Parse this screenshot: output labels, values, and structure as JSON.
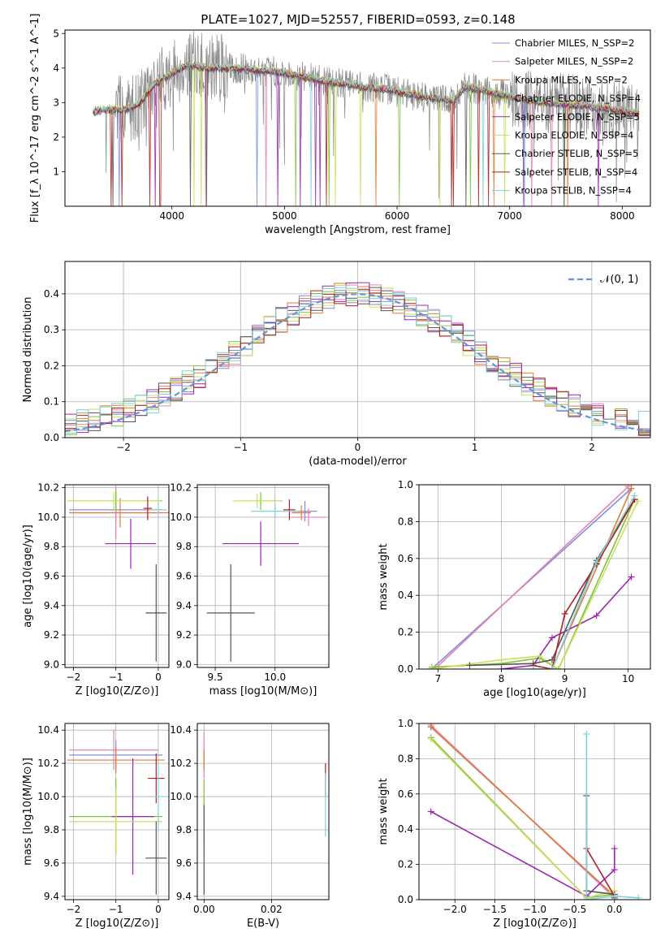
{
  "figure": {
    "title": "PLATE=1027, MJD=52557, FIBERID=0593, z=0.148"
  },
  "colors": {
    "chabrier_miles": "#7b8fe0",
    "salpeter_miles": "#e583b3",
    "kroupa_miles": "#e07b3a",
    "chabrier_elodie": "#7fbf3f",
    "salpeter_elodie": "#9b27b0",
    "kroupa_elodie": "#c8e05a",
    "chabrier_stelib": "#555555",
    "salpeter_stelib": "#b01f1f",
    "kroupa_stelib": "#7fd0d8",
    "normal_curve": "#6495dc",
    "grid": "#b0b0b0",
    "data_gray": "#888888"
  },
  "chart_data": [
    {
      "id": "spectrum",
      "type": "line",
      "title": "PLATE=1027, MJD=52557, FIBERID=0593, z=0.148",
      "xlabel": "wavelength [Angstrom, rest frame]",
      "ylabel": "Flux [f_λ 10^-17 erg cm^-2 s^-1 A^-1]",
      "xlim": [
        3050,
        8250
      ],
      "ylim": [
        0,
        5.1
      ],
      "xticks": [
        4000,
        5000,
        6000,
        7000,
        8000
      ],
      "yticks": [
        1,
        2,
        3,
        4,
        5
      ],
      "grid": false,
      "legend_position": "right",
      "continuum": {
        "x": [
          3300,
          3450,
          3600,
          3700,
          3850,
          3950,
          4050,
          4150,
          4300,
          4500,
          4700,
          4900,
          5100,
          5300,
          5500,
          5700,
          5900,
          6100,
          6300,
          6500,
          6600,
          6700,
          6900,
          7100,
          7300,
          7500,
          7700,
          7900,
          8100
        ],
        "y": [
          2.75,
          2.8,
          2.8,
          2.95,
          3.55,
          3.75,
          3.95,
          4.1,
          4.0,
          4.0,
          3.95,
          3.9,
          3.8,
          3.65,
          3.55,
          3.45,
          3.4,
          3.25,
          3.15,
          3.05,
          3.45,
          3.4,
          3.25,
          3.1,
          3.0,
          2.95,
          2.9,
          2.8,
          2.7
        ]
      },
      "series": [
        {
          "name": "Chabrier MILES, N_SSP=2",
          "color_key": "chabrier_miles"
        },
        {
          "name": "Salpeter MILES, N_SSP=2",
          "color_key": "salpeter_miles"
        },
        {
          "name": "Kroupa MILES, N_SSP=2",
          "color_key": "kroupa_miles"
        },
        {
          "name": "Chabrier ELODIE, N_SSP=4",
          "color_key": "chabrier_elodie"
        },
        {
          "name": "Salpeter ELODIE, N_SSP=5",
          "color_key": "salpeter_elodie"
        },
        {
          "name": "Kroupa ELODIE, N_SSP=4",
          "color_key": "kroupa_elodie"
        },
        {
          "name": "Chabrier STELIB, N_SSP=5",
          "color_key": "chabrier_stelib"
        },
        {
          "name": "Salpeter STELIB, N_SSP=4",
          "color_key": "salpeter_stelib"
        },
        {
          "name": "Kroupa STELIB, N_SSP=4",
          "color_key": "kroupa_stelib"
        }
      ]
    },
    {
      "id": "residuals",
      "type": "line",
      "xlabel": "(data-model)/error",
      "ylabel": "Normed distribution",
      "xlim": [
        -2.5,
        2.5
      ],
      "ylim": [
        0,
        0.49
      ],
      "xticks": [
        -2,
        -1,
        0,
        1,
        2
      ],
      "yticks": [
        0.0,
        0.1,
        0.2,
        0.3,
        0.4
      ],
      "grid": true,
      "legend_position": "top-right",
      "legend": "𝒩(0, 1)",
      "normal_curve": {
        "mu": 0,
        "sigma": 1
      },
      "bin_width": 0.1
    },
    {
      "id": "age_vs_Z",
      "type": "scatter",
      "xlabel": "Z [log10(Z/Z⊙)]",
      "ylabel": "age [log10(age/yr)]",
      "xlim": [
        -2.2,
        0.25
      ],
      "ylim": [
        8.98,
        10.22
      ],
      "xticks": [
        -2,
        -1,
        0
      ],
      "yticks": [
        9.0,
        9.2,
        9.4,
        9.6,
        9.8,
        10.0,
        10.2
      ],
      "grid": true,
      "points": [
        {
          "x": -1.0,
          "y": 10.05,
          "xerr": 1.1,
          "yerr": 0.08,
          "color_key": "chabrier_miles"
        },
        {
          "x": -1.0,
          "y": 10.03,
          "xerr": 1.1,
          "yerr": 0.18,
          "color_key": "salpeter_miles"
        },
        {
          "x": -0.9,
          "y": 10.03,
          "xerr": 1.2,
          "yerr": 0.1,
          "color_key": "kroupa_miles"
        },
        {
          "x": -1.0,
          "y": 10.11,
          "xerr": 1.1,
          "yerr": 0.07,
          "color_key": "chabrier_elodie"
        },
        {
          "x": -0.65,
          "y": 9.82,
          "xerr": 0.6,
          "yerr": 0.17,
          "color_key": "salpeter_elodie"
        },
        {
          "x": -1.05,
          "y": 10.11,
          "xerr": 1.1,
          "yerr": 0.06,
          "color_key": "kroupa_elodie"
        },
        {
          "x": -0.05,
          "y": 9.35,
          "xerr": 0.25,
          "yerr": 0.33,
          "color_key": "chabrier_stelib"
        },
        {
          "x": -0.25,
          "y": 10.06,
          "xerr": 0.1,
          "yerr": 0.08,
          "color_key": "salpeter_stelib"
        },
        {
          "x": 0.0,
          "y": 10.05,
          "xerr": 0.2,
          "yerr": 0.05,
          "color_key": "kroupa_stelib"
        }
      ]
    },
    {
      "id": "age_vs_mass",
      "type": "scatter",
      "xlabel": "mass [log10(M/M⊙)]",
      "ylabel": "",
      "xlim": [
        9.35,
        10.45
      ],
      "ylim": [
        8.98,
        10.22
      ],
      "xticks": [
        9.5,
        10.0
      ],
      "yticks": [
        9.0,
        9.2,
        9.4,
        9.6,
        9.8,
        10.0,
        10.2
      ],
      "grid": true,
      "points": [
        {
          "x": 10.25,
          "y": 10.04,
          "xerr": 0.1,
          "yerr": 0.07,
          "color_key": "chabrier_miles"
        },
        {
          "x": 10.28,
          "y": 10.0,
          "xerr": 0.15,
          "yerr": 0.06,
          "color_key": "salpeter_miles"
        },
        {
          "x": 10.22,
          "y": 10.03,
          "xerr": 0.08,
          "yerr": 0.05,
          "color_key": "kroupa_miles"
        },
        {
          "x": 9.88,
          "y": 10.11,
          "xerr": 0.18,
          "yerr": 0.06,
          "color_key": "chabrier_elodie"
        },
        {
          "x": 9.88,
          "y": 9.82,
          "xerr": 0.32,
          "yerr": 0.15,
          "color_key": "salpeter_elodie"
        },
        {
          "x": 9.85,
          "y": 10.11,
          "xerr": 0.2,
          "yerr": 0.05,
          "color_key": "kroupa_elodie"
        },
        {
          "x": 9.63,
          "y": 9.35,
          "xerr": 0.2,
          "yerr": 0.33,
          "color_key": "chabrier_stelib"
        },
        {
          "x": 10.12,
          "y": 10.05,
          "xerr": 0.05,
          "yerr": 0.07,
          "color_key": "salpeter_stelib"
        },
        {
          "x": 10.0,
          "y": 10.04,
          "xerr": 0.2,
          "yerr": 0.05,
          "color_key": "kroupa_stelib"
        }
      ]
    },
    {
      "id": "weight_vs_age",
      "type": "line",
      "xlabel": "age [log10(age/yr)]",
      "ylabel": "mass weight",
      "xlim": [
        6.7,
        10.35
      ],
      "ylim": [
        0,
        1.0
      ],
      "xticks": [
        7,
        8,
        9,
        10
      ],
      "yticks": [
        0.0,
        0.2,
        0.4,
        0.6,
        0.8,
        1.0
      ],
      "grid": true,
      "series": [
        {
          "name": "Chabrier MILES, N_SSP=2",
          "color_key": "chabrier_miles",
          "x": [
            6.9,
            10.05
          ],
          "y": [
            0.0,
            0.98
          ]
        },
        {
          "name": "Salpeter MILES, N_SSP=2",
          "color_key": "salpeter_miles",
          "x": [
            6.95,
            10.0
          ],
          "y": [
            0.0,
            0.99
          ]
        },
        {
          "name": "Kroupa MILES, N_SSP=2",
          "color_key": "kroupa_miles",
          "x": [
            8.8,
            10.05
          ],
          "y": [
            0.0,
            0.98
          ]
        },
        {
          "name": "Chabrier ELODIE, N_SSP=4",
          "color_key": "chabrier_elodie",
          "x": [
            6.9,
            8.0,
            8.6,
            8.9,
            10.1
          ],
          "y": [
            0.01,
            0.03,
            0.06,
            0.0,
            0.92
          ]
        },
        {
          "name": "Salpeter ELODIE, N_SSP=5",
          "color_key": "salpeter_elodie",
          "x": [
            8.0,
            8.5,
            8.8,
            9.5,
            10.05
          ],
          "y": [
            0.0,
            0.02,
            0.17,
            0.29,
            0.5
          ]
        },
        {
          "name": "Kroupa ELODIE, N_SSP=4",
          "color_key": "kroupa_elodie",
          "x": [
            6.9,
            8.0,
            8.6,
            8.9,
            10.15
          ],
          "y": [
            0.0,
            0.05,
            0.07,
            0.0,
            0.91
          ]
        },
        {
          "name": "Chabrier STELIB, N_SSP=5",
          "color_key": "chabrier_stelib",
          "x": [
            7.5,
            8.5,
            8.8,
            9.5,
            10.1
          ],
          "y": [
            0.02,
            0.03,
            0.05,
            0.59,
            0.92
          ]
        },
        {
          "name": "Salpeter STELIB, N_SSP=4",
          "color_key": "salpeter_stelib",
          "x": [
            8.5,
            8.8,
            9.0,
            9.5,
            10.1
          ],
          "y": [
            0.02,
            0.0,
            0.3,
            0.57,
            0.92
          ]
        },
        {
          "name": "Kroupa STELIB, N_SSP=4",
          "color_key": "kroupa_stelib",
          "x": [
            8.5,
            8.8,
            9.5,
            10.1
          ],
          "y": [
            0.0,
            0.0,
            0.58,
            0.94
          ]
        }
      ]
    },
    {
      "id": "mass_vs_Z",
      "type": "scatter",
      "xlabel": "Z [log10(Z/Z⊙)]",
      "ylabel": "mass [log10(M/M⊙)]",
      "xlim": [
        -2.2,
        0.25
      ],
      "ylim": [
        9.38,
        10.44
      ],
      "xticks": [
        -2,
        -1,
        0
      ],
      "yticks": [
        9.4,
        9.6,
        9.8,
        10.0,
        10.2,
        10.4
      ],
      "grid": true,
      "points": [
        {
          "x": -1.0,
          "y": 10.25,
          "xerr": 1.1,
          "yerr": 0.09,
          "color_key": "chabrier_miles"
        },
        {
          "x": -1.05,
          "y": 10.28,
          "xerr": 1.05,
          "yerr": 0.12,
          "color_key": "salpeter_miles"
        },
        {
          "x": -1.0,
          "y": 10.22,
          "xerr": 1.15,
          "yerr": 0.08,
          "color_key": "kroupa_miles"
        },
        {
          "x": -1.0,
          "y": 9.88,
          "xerr": 1.1,
          "yerr": 0.23,
          "color_key": "chabrier_elodie"
        },
        {
          "x": -0.6,
          "y": 9.88,
          "xerr": 0.5,
          "yerr": 0.35,
          "color_key": "salpeter_elodie"
        },
        {
          "x": -1.0,
          "y": 9.85,
          "xerr": 1.1,
          "yerr": 0.2,
          "color_key": "kroupa_elodie"
        },
        {
          "x": -0.05,
          "y": 9.63,
          "xerr": 0.25,
          "yerr": 0.22,
          "color_key": "chabrier_stelib"
        },
        {
          "x": -0.05,
          "y": 10.11,
          "xerr": 0.2,
          "yerr": 0.15,
          "color_key": "salpeter_stelib"
        },
        {
          "x": 0.0,
          "y": 10.0,
          "xerr": 0.2,
          "yerr": 0.2,
          "color_key": "kroupa_stelib"
        }
      ]
    },
    {
      "id": "mass_vs_ebv",
      "type": "scatter",
      "xlabel": "E(B-V)",
      "ylabel": "",
      "xlim": [
        -0.002,
        0.037
      ],
      "ylim": [
        9.38,
        10.44
      ],
      "xticks": [
        0.0,
        0.02
      ],
      "yticks": [
        9.4,
        9.6,
        9.8,
        10.0,
        10.2,
        10.4
      ],
      "grid": true,
      "points": [
        {
          "x": 0.0,
          "y": 10.25,
          "xerr": 0,
          "yerr": 0.14,
          "color_key": "salpeter_miles"
        },
        {
          "x": 0.0,
          "y": 10.22,
          "xerr": 0,
          "yerr": 0.06,
          "color_key": "kroupa_miles"
        },
        {
          "x": 0.0,
          "y": 9.9,
          "xerr": 0,
          "yerr": 0.2,
          "color_key": "chabrier_elodie"
        },
        {
          "x": 0.0,
          "y": 9.68,
          "xerr": 0,
          "yerr": 0.27,
          "color_key": "chabrier_stelib"
        },
        {
          "x": 0.036,
          "y": 10.1,
          "xerr": 0,
          "yerr": 0.1,
          "color_key": "salpeter_stelib"
        },
        {
          "x": 0.036,
          "y": 9.95,
          "xerr": 0,
          "yerr": 0.19,
          "color_key": "kroupa_stelib"
        }
      ]
    },
    {
      "id": "weight_vs_Z",
      "type": "line",
      "xlabel": "Z [log10(Z/Z⊙)]",
      "ylabel": "mass weight",
      "xlim": [
        -2.45,
        0.45
      ],
      "ylim": [
        0,
        1.0
      ],
      "xticks": [
        -2.0,
        -1.5,
        -1.0,
        -0.5,
        0.0
      ],
      "yticks": [
        0.0,
        0.2,
        0.4,
        0.6,
        0.8,
        1.0
      ],
      "grid": true,
      "series": [
        {
          "name": "Chabrier MILES, N_SSP=2",
          "color_key": "chabrier_miles",
          "x": [
            -2.3,
            0.0
          ],
          "y": [
            0.98,
            0.02
          ]
        },
        {
          "name": "Salpeter MILES, N_SSP=2",
          "color_key": "salpeter_miles",
          "x": [
            -2.3,
            0.0
          ],
          "y": [
            0.99,
            0.01
          ]
        },
        {
          "name": "Kroupa MILES, N_SSP=2",
          "color_key": "kroupa_miles",
          "x": [
            -2.3,
            0.0
          ],
          "y": [
            0.98,
            0.02
          ]
        },
        {
          "name": "Chabrier ELODIE, N_SSP=4",
          "color_key": "chabrier_elodie",
          "x": [
            -2.3,
            -0.35,
            0.0
          ],
          "y": [
            0.92,
            0.01,
            0.03
          ]
        },
        {
          "name": "Salpeter ELODIE, N_SSP=5",
          "color_key": "salpeter_elodie",
          "x": [
            -2.3,
            -0.35,
            0.0,
            0.0
          ],
          "y": [
            0.5,
            0.02,
            0.17,
            0.29
          ]
        },
        {
          "name": "Kroupa ELODIE, N_SSP=4",
          "color_key": "kroupa_elodie",
          "x": [
            -2.3,
            -0.35,
            0.0
          ],
          "y": [
            0.91,
            0.01,
            0.05
          ]
        },
        {
          "name": "Chabrier STELIB, N_SSP=5",
          "color_key": "chabrier_stelib",
          "x": [
            -0.35,
            -0.35,
            0.0,
            0.0
          ],
          "y": [
            0.59,
            0.05,
            0.03,
            0.01
          ]
        },
        {
          "name": "Salpeter STELIB, N_SSP=4",
          "color_key": "salpeter_stelib",
          "x": [
            -0.35,
            0.0,
            0.0
          ],
          "y": [
            0.29,
            0.02,
            0.0
          ]
        },
        {
          "name": "Kroupa STELIB, N_SSP=4",
          "color_key": "kroupa_stelib",
          "x": [
            -0.35,
            -0.35,
            0.0,
            0.3
          ],
          "y": [
            0.94,
            0.0,
            0.02,
            0.01
          ]
        }
      ]
    }
  ]
}
